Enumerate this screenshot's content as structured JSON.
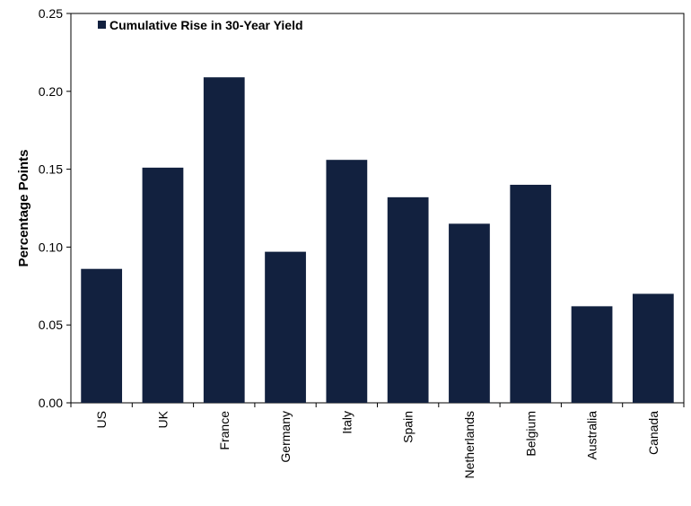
{
  "chart_data": {
    "type": "bar",
    "title": "",
    "xlabel": "",
    "ylabel": "Percentage Points",
    "ylim": [
      0,
      0.25
    ],
    "yticks": [
      "0.00",
      "0.05",
      "0.10",
      "0.15",
      "0.20",
      "0.25"
    ],
    "grid": false,
    "legend_position": "top-left",
    "categories": [
      "US",
      "UK",
      "France",
      "Germany",
      "Italy",
      "Spain",
      "Netherlands",
      "Belgium",
      "Australia",
      "Canada"
    ],
    "series": [
      {
        "name": "Cumulative Rise in 30-Year Yield",
        "color": "#12213f",
        "values": [
          0.086,
          0.151,
          0.209,
          0.097,
          0.156,
          0.132,
          0.115,
          0.14,
          0.062,
          0.07
        ]
      }
    ]
  }
}
